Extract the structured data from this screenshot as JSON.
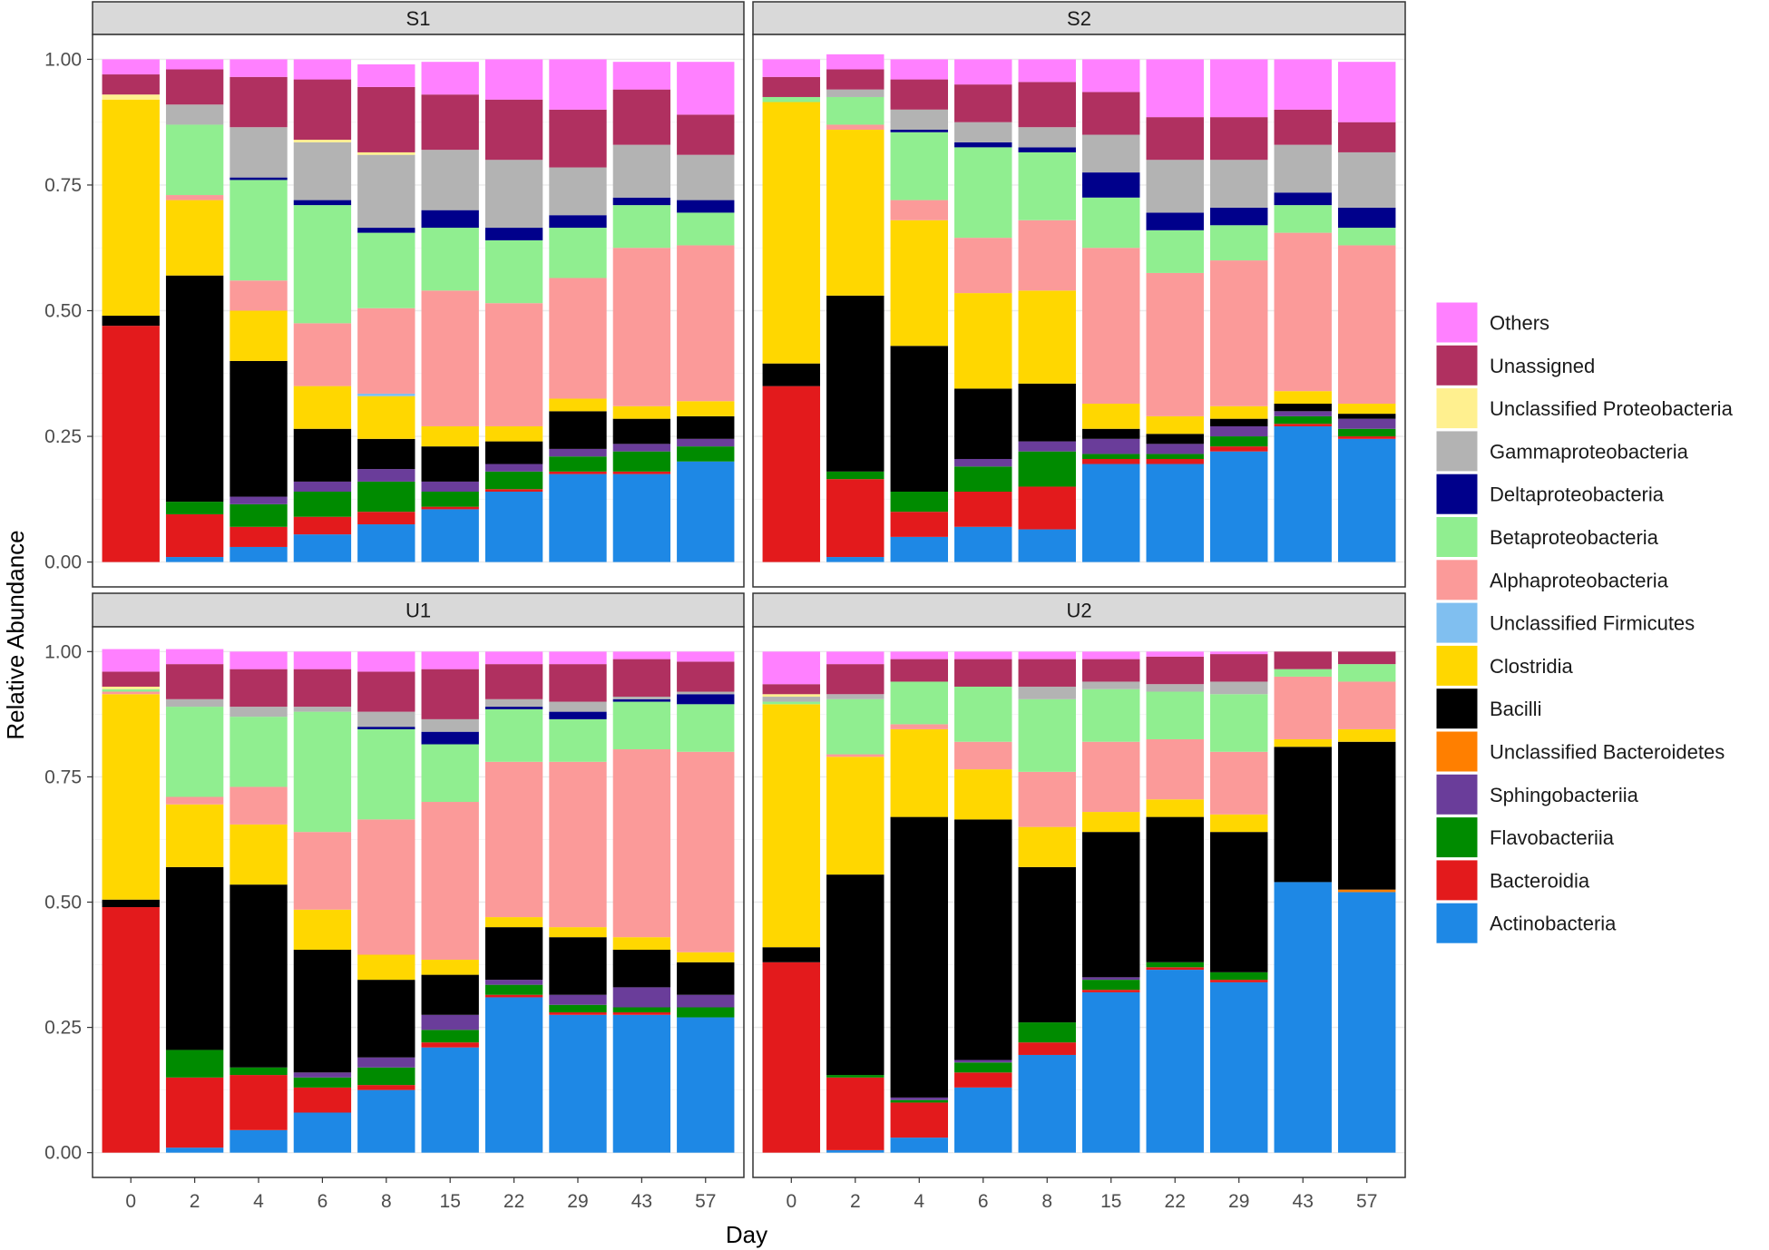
{
  "chart_data": {
    "type": "stacked-bar-facets",
    "xlabel": "Day",
    "ylabel": "Relative Abundance",
    "ylim": [
      0,
      1
    ],
    "y_ticks": [
      "0.00",
      "0.25",
      "0.50",
      "0.75",
      "1.00"
    ],
    "y_tick_values": [
      0,
      0.25,
      0.5,
      0.75,
      1.0
    ],
    "categories": [
      "0",
      "2",
      "4",
      "6",
      "8",
      "15",
      "22",
      "29",
      "43",
      "57"
    ],
    "classes": [
      {
        "name": "Actinobacteria",
        "color": "#1e88e5"
      },
      {
        "name": "Bacteroidia",
        "color": "#e31a1c"
      },
      {
        "name": "Flavobacteriia",
        "color": "#008b00"
      },
      {
        "name": "Sphingobacteriia",
        "color": "#6a3d9a"
      },
      {
        "name": "Unclassified Bacteroidetes",
        "color": "#ff7f00"
      },
      {
        "name": "Bacilli",
        "color": "#000000"
      },
      {
        "name": "Clostridia",
        "color": "#ffd700"
      },
      {
        "name": "Unclassified Firmicutes",
        "color": "#80bff0"
      },
      {
        "name": "Alphaproteobacteria",
        "color": "#fb9a99"
      },
      {
        "name": "Betaproteobacteria",
        "color": "#90ee90"
      },
      {
        "name": "Deltaproteobacteria",
        "color": "#00008b"
      },
      {
        "name": "Gammaproteobacteria",
        "color": "#b3b3b3"
      },
      {
        "name": "Unclassified Proteobacteria",
        "color": "#fff08f"
      },
      {
        "name": "Unassigned",
        "color": "#b03060"
      },
      {
        "name": "Others",
        "color": "#ff80ff"
      }
    ],
    "panels": [
      {
        "name": "S1",
        "bars": [
          [
            0.0,
            0.47,
            0.0,
            0.0,
            0.0,
            0.02,
            0.43,
            0.0,
            0.0,
            0.0,
            0.0,
            0.0,
            0.01,
            0.04,
            0.03
          ],
          [
            0.01,
            0.085,
            0.025,
            0.0,
            0.0,
            0.45,
            0.15,
            0.0,
            0.01,
            0.14,
            0.0,
            0.04,
            0.0,
            0.07,
            0.02
          ],
          [
            0.03,
            0.04,
            0.045,
            0.015,
            0.0,
            0.27,
            0.1,
            0.0,
            0.06,
            0.2,
            0.005,
            0.1,
            0.0,
            0.1,
            0.035
          ],
          [
            0.055,
            0.035,
            0.05,
            0.02,
            0.0,
            0.105,
            0.085,
            0.0,
            0.125,
            0.235,
            0.01,
            0.115,
            0.005,
            0.12,
            0.04
          ],
          [
            0.075,
            0.025,
            0.06,
            0.025,
            0.0,
            0.06,
            0.085,
            0.005,
            0.17,
            0.15,
            0.01,
            0.145,
            0.005,
            0.13,
            0.045
          ],
          [
            0.105,
            0.005,
            0.03,
            0.02,
            0.0,
            0.07,
            0.04,
            0.0,
            0.27,
            0.125,
            0.035,
            0.12,
            0.0,
            0.11,
            0.065
          ],
          [
            0.14,
            0.005,
            0.035,
            0.015,
            0.0,
            0.045,
            0.03,
            0.0,
            0.245,
            0.125,
            0.025,
            0.135,
            0.0,
            0.12,
            0.08
          ],
          [
            0.175,
            0.005,
            0.03,
            0.015,
            0.0,
            0.075,
            0.025,
            0.0,
            0.24,
            0.1,
            0.025,
            0.095,
            0.0,
            0.115,
            0.1
          ],
          [
            0.175,
            0.005,
            0.04,
            0.015,
            0.0,
            0.05,
            0.025,
            0.0,
            0.315,
            0.085,
            0.015,
            0.105,
            0.0,
            0.11,
            0.055
          ],
          [
            0.2,
            0.0,
            0.03,
            0.015,
            0.0,
            0.045,
            0.03,
            0.0,
            0.31,
            0.065,
            0.025,
            0.09,
            0.0,
            0.08,
            0.105
          ]
        ]
      },
      {
        "name": "S2",
        "bars": [
          [
            0.0,
            0.35,
            0.0,
            0.0,
            0.0,
            0.045,
            0.52,
            0.0,
            0.0,
            0.01,
            0.0,
            0.0,
            0.0,
            0.04,
            0.035
          ],
          [
            0.01,
            0.155,
            0.015,
            0.0,
            0.0,
            0.35,
            0.33,
            0.0,
            0.01,
            0.055,
            0.0,
            0.015,
            0.0,
            0.04,
            0.03
          ],
          [
            0.05,
            0.05,
            0.04,
            0.0,
            0.0,
            0.29,
            0.25,
            0.0,
            0.04,
            0.135,
            0.005,
            0.04,
            0.0,
            0.06,
            0.04
          ],
          [
            0.07,
            0.07,
            0.05,
            0.015,
            0.0,
            0.14,
            0.19,
            0.0,
            0.11,
            0.18,
            0.01,
            0.04,
            0.0,
            0.075,
            0.05
          ],
          [
            0.065,
            0.085,
            0.07,
            0.02,
            0.0,
            0.115,
            0.185,
            0.0,
            0.14,
            0.135,
            0.01,
            0.04,
            0.0,
            0.09,
            0.045
          ],
          [
            0.195,
            0.01,
            0.01,
            0.03,
            0.0,
            0.02,
            0.05,
            0.0,
            0.31,
            0.1,
            0.05,
            0.075,
            0.0,
            0.085,
            0.065
          ],
          [
            0.195,
            0.01,
            0.01,
            0.02,
            0.0,
            0.02,
            0.035,
            0.0,
            0.285,
            0.085,
            0.035,
            0.105,
            0.0,
            0.085,
            0.115
          ],
          [
            0.22,
            0.01,
            0.02,
            0.02,
            0.0,
            0.015,
            0.025,
            0.0,
            0.29,
            0.07,
            0.035,
            0.095,
            0.0,
            0.085,
            0.115
          ],
          [
            0.27,
            0.005,
            0.015,
            0.01,
            0.0,
            0.015,
            0.025,
            0.0,
            0.315,
            0.055,
            0.025,
            0.095,
            0.0,
            0.07,
            0.1
          ],
          [
            0.245,
            0.005,
            0.015,
            0.02,
            0.0,
            0.01,
            0.02,
            0.0,
            0.315,
            0.035,
            0.04,
            0.11,
            0.0,
            0.06,
            0.12
          ]
        ]
      },
      {
        "name": "U1",
        "bars": [
          [
            0.0,
            0.49,
            0.0,
            0.0,
            0.0,
            0.015,
            0.41,
            0.0,
            0.005,
            0.005,
            0.0,
            0.0,
            0.005,
            0.03,
            0.045
          ],
          [
            0.01,
            0.14,
            0.055,
            0.0,
            0.0,
            0.365,
            0.125,
            0.0,
            0.015,
            0.18,
            0.0,
            0.015,
            0.0,
            0.07,
            0.03
          ],
          [
            0.045,
            0.11,
            0.015,
            0.0,
            0.0,
            0.365,
            0.12,
            0.0,
            0.075,
            0.14,
            0.0,
            0.02,
            0.0,
            0.075,
            0.035
          ],
          [
            0.08,
            0.05,
            0.02,
            0.01,
            0.0,
            0.245,
            0.08,
            0.0,
            0.155,
            0.24,
            0.0,
            0.01,
            0.0,
            0.075,
            0.035
          ],
          [
            0.125,
            0.01,
            0.035,
            0.02,
            0.0,
            0.155,
            0.05,
            0.0,
            0.27,
            0.18,
            0.005,
            0.03,
            0.0,
            0.08,
            0.04
          ],
          [
            0.21,
            0.01,
            0.025,
            0.03,
            0.0,
            0.08,
            0.03,
            0.0,
            0.315,
            0.115,
            0.025,
            0.025,
            0.0,
            0.1,
            0.035
          ],
          [
            0.31,
            0.005,
            0.02,
            0.01,
            0.0,
            0.105,
            0.02,
            0.0,
            0.31,
            0.105,
            0.005,
            0.015,
            0.0,
            0.07,
            0.025
          ],
          [
            0.275,
            0.005,
            0.015,
            0.02,
            0.0,
            0.115,
            0.02,
            0.0,
            0.33,
            0.085,
            0.015,
            0.02,
            0.0,
            0.075,
            0.025
          ],
          [
            0.275,
            0.005,
            0.01,
            0.04,
            0.0,
            0.075,
            0.025,
            0.0,
            0.375,
            0.095,
            0.005,
            0.005,
            0.0,
            0.075,
            0.015
          ],
          [
            0.27,
            0.0,
            0.02,
            0.025,
            0.0,
            0.065,
            0.02,
            0.0,
            0.4,
            0.095,
            0.02,
            0.005,
            0.0,
            0.06,
            0.02
          ]
        ]
      },
      {
        "name": "U2",
        "bars": [
          [
            0.0,
            0.38,
            0.0,
            0.0,
            0.0,
            0.03,
            0.485,
            0.0,
            0.0,
            0.005,
            0.0,
            0.01,
            0.005,
            0.02,
            0.065
          ],
          [
            0.005,
            0.145,
            0.005,
            0.0,
            0.0,
            0.4,
            0.235,
            0.0,
            0.005,
            0.11,
            0.0,
            0.01,
            0.0,
            0.06,
            0.025
          ],
          [
            0.03,
            0.07,
            0.005,
            0.005,
            0.0,
            0.56,
            0.175,
            0.0,
            0.01,
            0.085,
            0.0,
            0.0,
            0.0,
            0.045,
            0.015
          ],
          [
            0.13,
            0.03,
            0.02,
            0.005,
            0.0,
            0.48,
            0.1,
            0.0,
            0.055,
            0.11,
            0.0,
            0.0,
            0.0,
            0.055,
            0.015
          ],
          [
            0.195,
            0.025,
            0.04,
            0.0,
            0.0,
            0.31,
            0.08,
            0.0,
            0.11,
            0.145,
            0.0,
            0.025,
            0.0,
            0.055,
            0.015
          ],
          [
            0.32,
            0.005,
            0.02,
            0.005,
            0.0,
            0.29,
            0.04,
            0.0,
            0.14,
            0.105,
            0.0,
            0.015,
            0.0,
            0.045,
            0.015
          ],
          [
            0.365,
            0.005,
            0.01,
            0.0,
            0.0,
            0.29,
            0.035,
            0.0,
            0.12,
            0.095,
            0.0,
            0.015,
            0.0,
            0.055,
            0.01
          ],
          [
            0.34,
            0.005,
            0.015,
            0.0,
            0.0,
            0.28,
            0.035,
            0.0,
            0.125,
            0.115,
            0.0,
            0.025,
            0.0,
            0.055,
            0.005
          ],
          [
            0.54,
            0.0,
            0.0,
            0.0,
            0.0,
            0.27,
            0.015,
            0.0,
            0.125,
            0.015,
            0.0,
            0.0,
            0.0,
            0.035,
            0.0
          ],
          [
            0.52,
            0.0,
            0.0,
            0.0,
            0.005,
            0.295,
            0.025,
            0.0,
            0.095,
            0.035,
            0.0,
            0.0,
            0.0,
            0.025,
            0.0
          ]
        ]
      }
    ],
    "legend_position": "right"
  }
}
